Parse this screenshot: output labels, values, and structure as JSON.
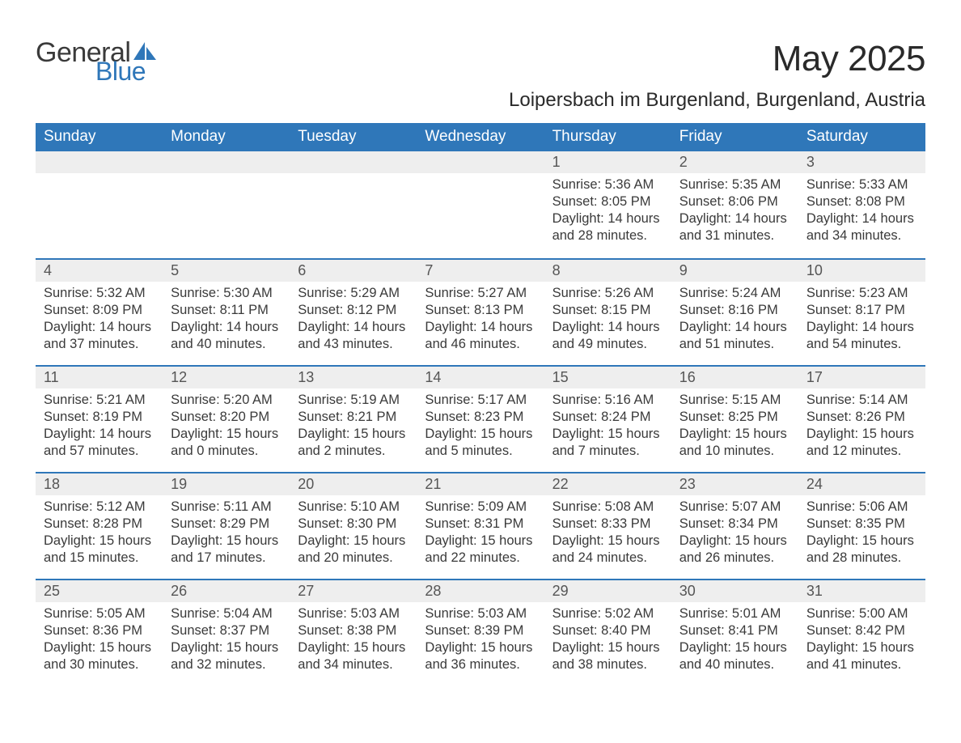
{
  "logo": {
    "text1": "General",
    "text2": "Blue",
    "icon_color": "#2f77b9"
  },
  "header": {
    "month_title": "May 2025",
    "location": "Loipersbach im Burgenland, Burgenland, Austria"
  },
  "colors": {
    "header_bg": "#2f77b9",
    "header_text": "#ffffff",
    "daynum_bg": "#eeeeee",
    "row_border": "#2f77b9",
    "body_text": "#3a3a3a",
    "page_bg": "#ffffff"
  },
  "fonts": {
    "title_size_pt": 33,
    "location_size_pt": 18,
    "header_size_pt": 14,
    "daynum_size_pt": 13,
    "body_size_pt": 12
  },
  "calendar": {
    "columns": [
      "Sunday",
      "Monday",
      "Tuesday",
      "Wednesday",
      "Thursday",
      "Friday",
      "Saturday"
    ],
    "weeks": [
      [
        null,
        null,
        null,
        null,
        {
          "n": "1",
          "sunrise": "5:36 AM",
          "sunset": "8:05 PM",
          "dl1": "Daylight: 14 hours",
          "dl2": "and 28 minutes."
        },
        {
          "n": "2",
          "sunrise": "5:35 AM",
          "sunset": "8:06 PM",
          "dl1": "Daylight: 14 hours",
          "dl2": "and 31 minutes."
        },
        {
          "n": "3",
          "sunrise": "5:33 AM",
          "sunset": "8:08 PM",
          "dl1": "Daylight: 14 hours",
          "dl2": "and 34 minutes."
        }
      ],
      [
        {
          "n": "4",
          "sunrise": "5:32 AM",
          "sunset": "8:09 PM",
          "dl1": "Daylight: 14 hours",
          "dl2": "and 37 minutes."
        },
        {
          "n": "5",
          "sunrise": "5:30 AM",
          "sunset": "8:11 PM",
          "dl1": "Daylight: 14 hours",
          "dl2": "and 40 minutes."
        },
        {
          "n": "6",
          "sunrise": "5:29 AM",
          "sunset": "8:12 PM",
          "dl1": "Daylight: 14 hours",
          "dl2": "and 43 minutes."
        },
        {
          "n": "7",
          "sunrise": "5:27 AM",
          "sunset": "8:13 PM",
          "dl1": "Daylight: 14 hours",
          "dl2": "and 46 minutes."
        },
        {
          "n": "8",
          "sunrise": "5:26 AM",
          "sunset": "8:15 PM",
          "dl1": "Daylight: 14 hours",
          "dl2": "and 49 minutes."
        },
        {
          "n": "9",
          "sunrise": "5:24 AM",
          "sunset": "8:16 PM",
          "dl1": "Daylight: 14 hours",
          "dl2": "and 51 minutes."
        },
        {
          "n": "10",
          "sunrise": "5:23 AM",
          "sunset": "8:17 PM",
          "dl1": "Daylight: 14 hours",
          "dl2": "and 54 minutes."
        }
      ],
      [
        {
          "n": "11",
          "sunrise": "5:21 AM",
          "sunset": "8:19 PM",
          "dl1": "Daylight: 14 hours",
          "dl2": "and 57 minutes."
        },
        {
          "n": "12",
          "sunrise": "5:20 AM",
          "sunset": "8:20 PM",
          "dl1": "Daylight: 15 hours",
          "dl2": "and 0 minutes."
        },
        {
          "n": "13",
          "sunrise": "5:19 AM",
          "sunset": "8:21 PM",
          "dl1": "Daylight: 15 hours",
          "dl2": "and 2 minutes."
        },
        {
          "n": "14",
          "sunrise": "5:17 AM",
          "sunset": "8:23 PM",
          "dl1": "Daylight: 15 hours",
          "dl2": "and 5 minutes."
        },
        {
          "n": "15",
          "sunrise": "5:16 AM",
          "sunset": "8:24 PM",
          "dl1": "Daylight: 15 hours",
          "dl2": "and 7 minutes."
        },
        {
          "n": "16",
          "sunrise": "5:15 AM",
          "sunset": "8:25 PM",
          "dl1": "Daylight: 15 hours",
          "dl2": "and 10 minutes."
        },
        {
          "n": "17",
          "sunrise": "5:14 AM",
          "sunset": "8:26 PM",
          "dl1": "Daylight: 15 hours",
          "dl2": "and 12 minutes."
        }
      ],
      [
        {
          "n": "18",
          "sunrise": "5:12 AM",
          "sunset": "8:28 PM",
          "dl1": "Daylight: 15 hours",
          "dl2": "and 15 minutes."
        },
        {
          "n": "19",
          "sunrise": "5:11 AM",
          "sunset": "8:29 PM",
          "dl1": "Daylight: 15 hours",
          "dl2": "and 17 minutes."
        },
        {
          "n": "20",
          "sunrise": "5:10 AM",
          "sunset": "8:30 PM",
          "dl1": "Daylight: 15 hours",
          "dl2": "and 20 minutes."
        },
        {
          "n": "21",
          "sunrise": "5:09 AM",
          "sunset": "8:31 PM",
          "dl1": "Daylight: 15 hours",
          "dl2": "and 22 minutes."
        },
        {
          "n": "22",
          "sunrise": "5:08 AM",
          "sunset": "8:33 PM",
          "dl1": "Daylight: 15 hours",
          "dl2": "and 24 minutes."
        },
        {
          "n": "23",
          "sunrise": "5:07 AM",
          "sunset": "8:34 PM",
          "dl1": "Daylight: 15 hours",
          "dl2": "and 26 minutes."
        },
        {
          "n": "24",
          "sunrise": "5:06 AM",
          "sunset": "8:35 PM",
          "dl1": "Daylight: 15 hours",
          "dl2": "and 28 minutes."
        }
      ],
      [
        {
          "n": "25",
          "sunrise": "5:05 AM",
          "sunset": "8:36 PM",
          "dl1": "Daylight: 15 hours",
          "dl2": "and 30 minutes."
        },
        {
          "n": "26",
          "sunrise": "5:04 AM",
          "sunset": "8:37 PM",
          "dl1": "Daylight: 15 hours",
          "dl2": "and 32 minutes."
        },
        {
          "n": "27",
          "sunrise": "5:03 AM",
          "sunset": "8:38 PM",
          "dl1": "Daylight: 15 hours",
          "dl2": "and 34 minutes."
        },
        {
          "n": "28",
          "sunrise": "5:03 AM",
          "sunset": "8:39 PM",
          "dl1": "Daylight: 15 hours",
          "dl2": "and 36 minutes."
        },
        {
          "n": "29",
          "sunrise": "5:02 AM",
          "sunset": "8:40 PM",
          "dl1": "Daylight: 15 hours",
          "dl2": "and 38 minutes."
        },
        {
          "n": "30",
          "sunrise": "5:01 AM",
          "sunset": "8:41 PM",
          "dl1": "Daylight: 15 hours",
          "dl2": "and 40 minutes."
        },
        {
          "n": "31",
          "sunrise": "5:00 AM",
          "sunset": "8:42 PM",
          "dl1": "Daylight: 15 hours",
          "dl2": "and 41 minutes."
        }
      ]
    ]
  },
  "labels": {
    "sunrise_prefix": "Sunrise: ",
    "sunset_prefix": "Sunset: "
  }
}
